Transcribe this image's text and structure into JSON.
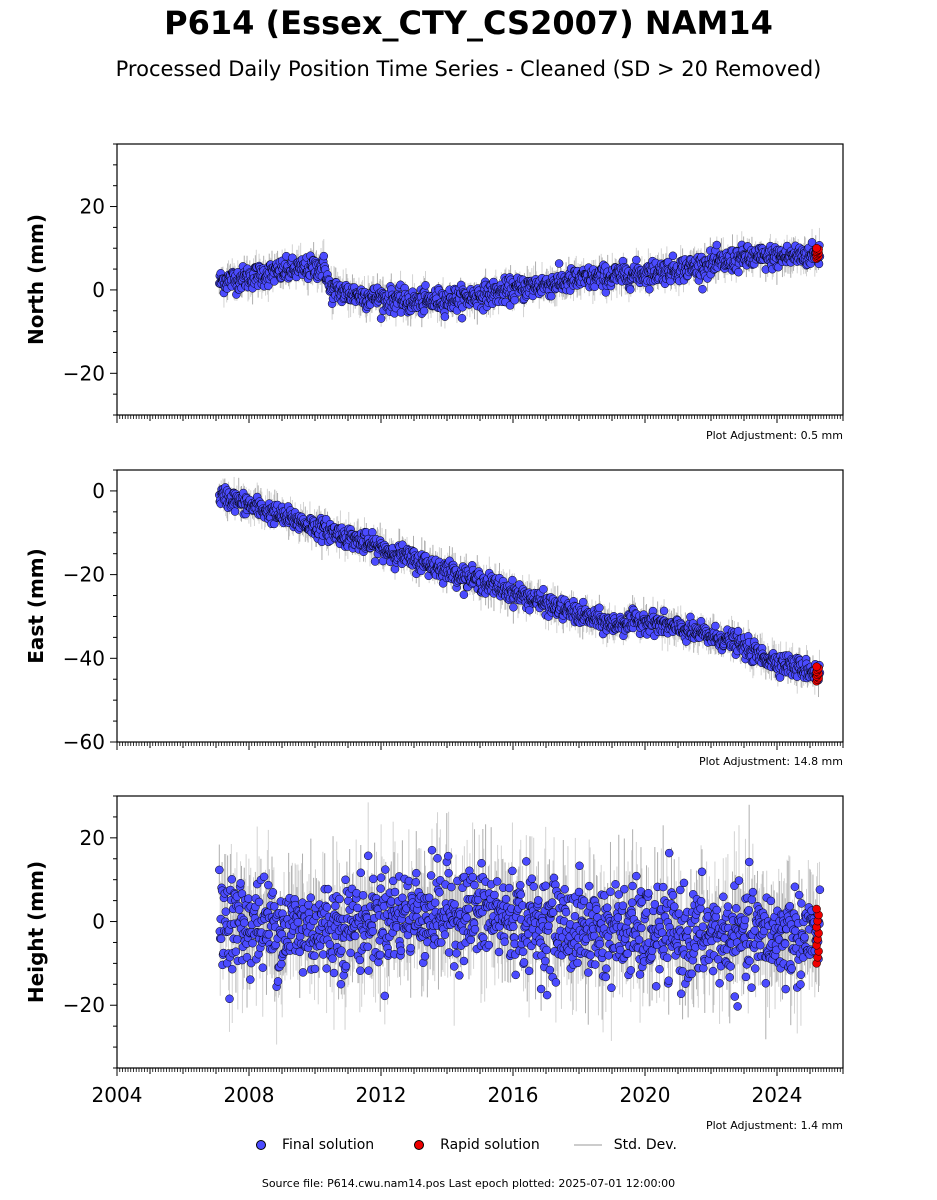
{
  "title": "P614 (Essex_CTY_CS2007) NAM14",
  "subtitle": "Processed Daily Position Time Series - Cleaned (SD > 20 Removed)",
  "legend": {
    "final": "Final solution",
    "rapid": "Rapid solution",
    "std": "Std. Dev."
  },
  "source_text": "Source file: P614.cwu.nam14.pos  Last epoch plotted: 2025-07-01 12:00:00",
  "colors": {
    "final": "#4b4bff",
    "rapid": "#ee0000",
    "std": "#c8c8c8",
    "marker_edge": "#000000"
  },
  "chart_data": [
    {
      "type": "scatter",
      "ylabel": "North (mm)",
      "adjustment": "Plot Adjustment: 0.5 mm",
      "xlim": [
        2004,
        2026
      ],
      "ylim": [
        -30,
        35
      ],
      "yticks": [
        -20,
        0,
        20
      ],
      "xticks": [
        2004,
        2008,
        2012,
        2016,
        2020,
        2024
      ],
      "show_x_tick_labels": false,
      "final_trend": [
        [
          2007.1,
          2
        ],
        [
          2008,
          3
        ],
        [
          2009,
          4.5
        ],
        [
          2010.3,
          5.5
        ],
        [
          2010.45,
          0
        ],
        [
          2011.5,
          -1.5
        ],
        [
          2013,
          -3
        ],
        [
          2014.5,
          -2
        ],
        [
          2016,
          0
        ],
        [
          2018,
          2.5
        ],
        [
          2020,
          4
        ],
        [
          2021.5,
          5.5
        ],
        [
          2022.3,
          6.5
        ],
        [
          2022.9,
          7.5
        ],
        [
          2025.3,
          8.5
        ]
      ],
      "final_scatter_sd": 1.4,
      "std_len": 3,
      "rapid": {
        "x_range": [
          2025.2,
          2025.5
        ],
        "y": [
          7.5,
          10
        ]
      }
    },
    {
      "type": "scatter",
      "ylabel": "East (mm)",
      "adjustment": "Plot Adjustment: 14.8 mm",
      "xlim": [
        2004,
        2026
      ],
      "ylim": [
        -60,
        5
      ],
      "yticks": [
        -60,
        -40,
        -20,
        0
      ],
      "xticks": [
        2004,
        2008,
        2012,
        2016,
        2020,
        2024
      ],
      "show_x_tick_labels": false,
      "final_trend": [
        [
          2007.1,
          -1
        ],
        [
          2009,
          -6
        ],
        [
          2011,
          -11
        ],
        [
          2013,
          -16.5
        ],
        [
          2015,
          -21.5
        ],
        [
          2017,
          -27
        ],
        [
          2019,
          -32
        ],
        [
          2020,
          -31
        ],
        [
          2021,
          -33
        ],
        [
          2022.7,
          -36
        ],
        [
          2023.5,
          -39.5
        ],
        [
          2024.5,
          -42
        ],
        [
          2025.3,
          -43.5
        ]
      ],
      "final_scatter_sd": 1.2,
      "std_len": 3,
      "rapid": {
        "x_range": [
          2025.2,
          2025.5
        ],
        "y": [
          -45.5,
          -42
        ]
      }
    },
    {
      "type": "scatter",
      "ylabel": "Height (mm)",
      "adjustment": "Plot Adjustment: 1.4 mm",
      "xlim": [
        2004,
        2026
      ],
      "ylim": [
        -35,
        30
      ],
      "yticks": [
        -20,
        0,
        20
      ],
      "xticks": [
        2004,
        2008,
        2012,
        2016,
        2020,
        2024
      ],
      "x_tick_labels": [
        "2004",
        "2008",
        "2012",
        "2016",
        "2020",
        "2024"
      ],
      "show_x_tick_labels": true,
      "final_trend": [
        [
          2007.1,
          0
        ],
        [
          2010,
          -2
        ],
        [
          2013,
          2
        ],
        [
          2015,
          2
        ],
        [
          2017,
          -1
        ],
        [
          2020,
          -3
        ],
        [
          2023,
          -4
        ],
        [
          2025.3,
          -3
        ]
      ],
      "final_scatter_sd": 5.5,
      "std_len": 10,
      "rapid": {
        "x_range": [
          2025.2,
          2025.5
        ],
        "y": [
          -10,
          3
        ]
      }
    }
  ]
}
